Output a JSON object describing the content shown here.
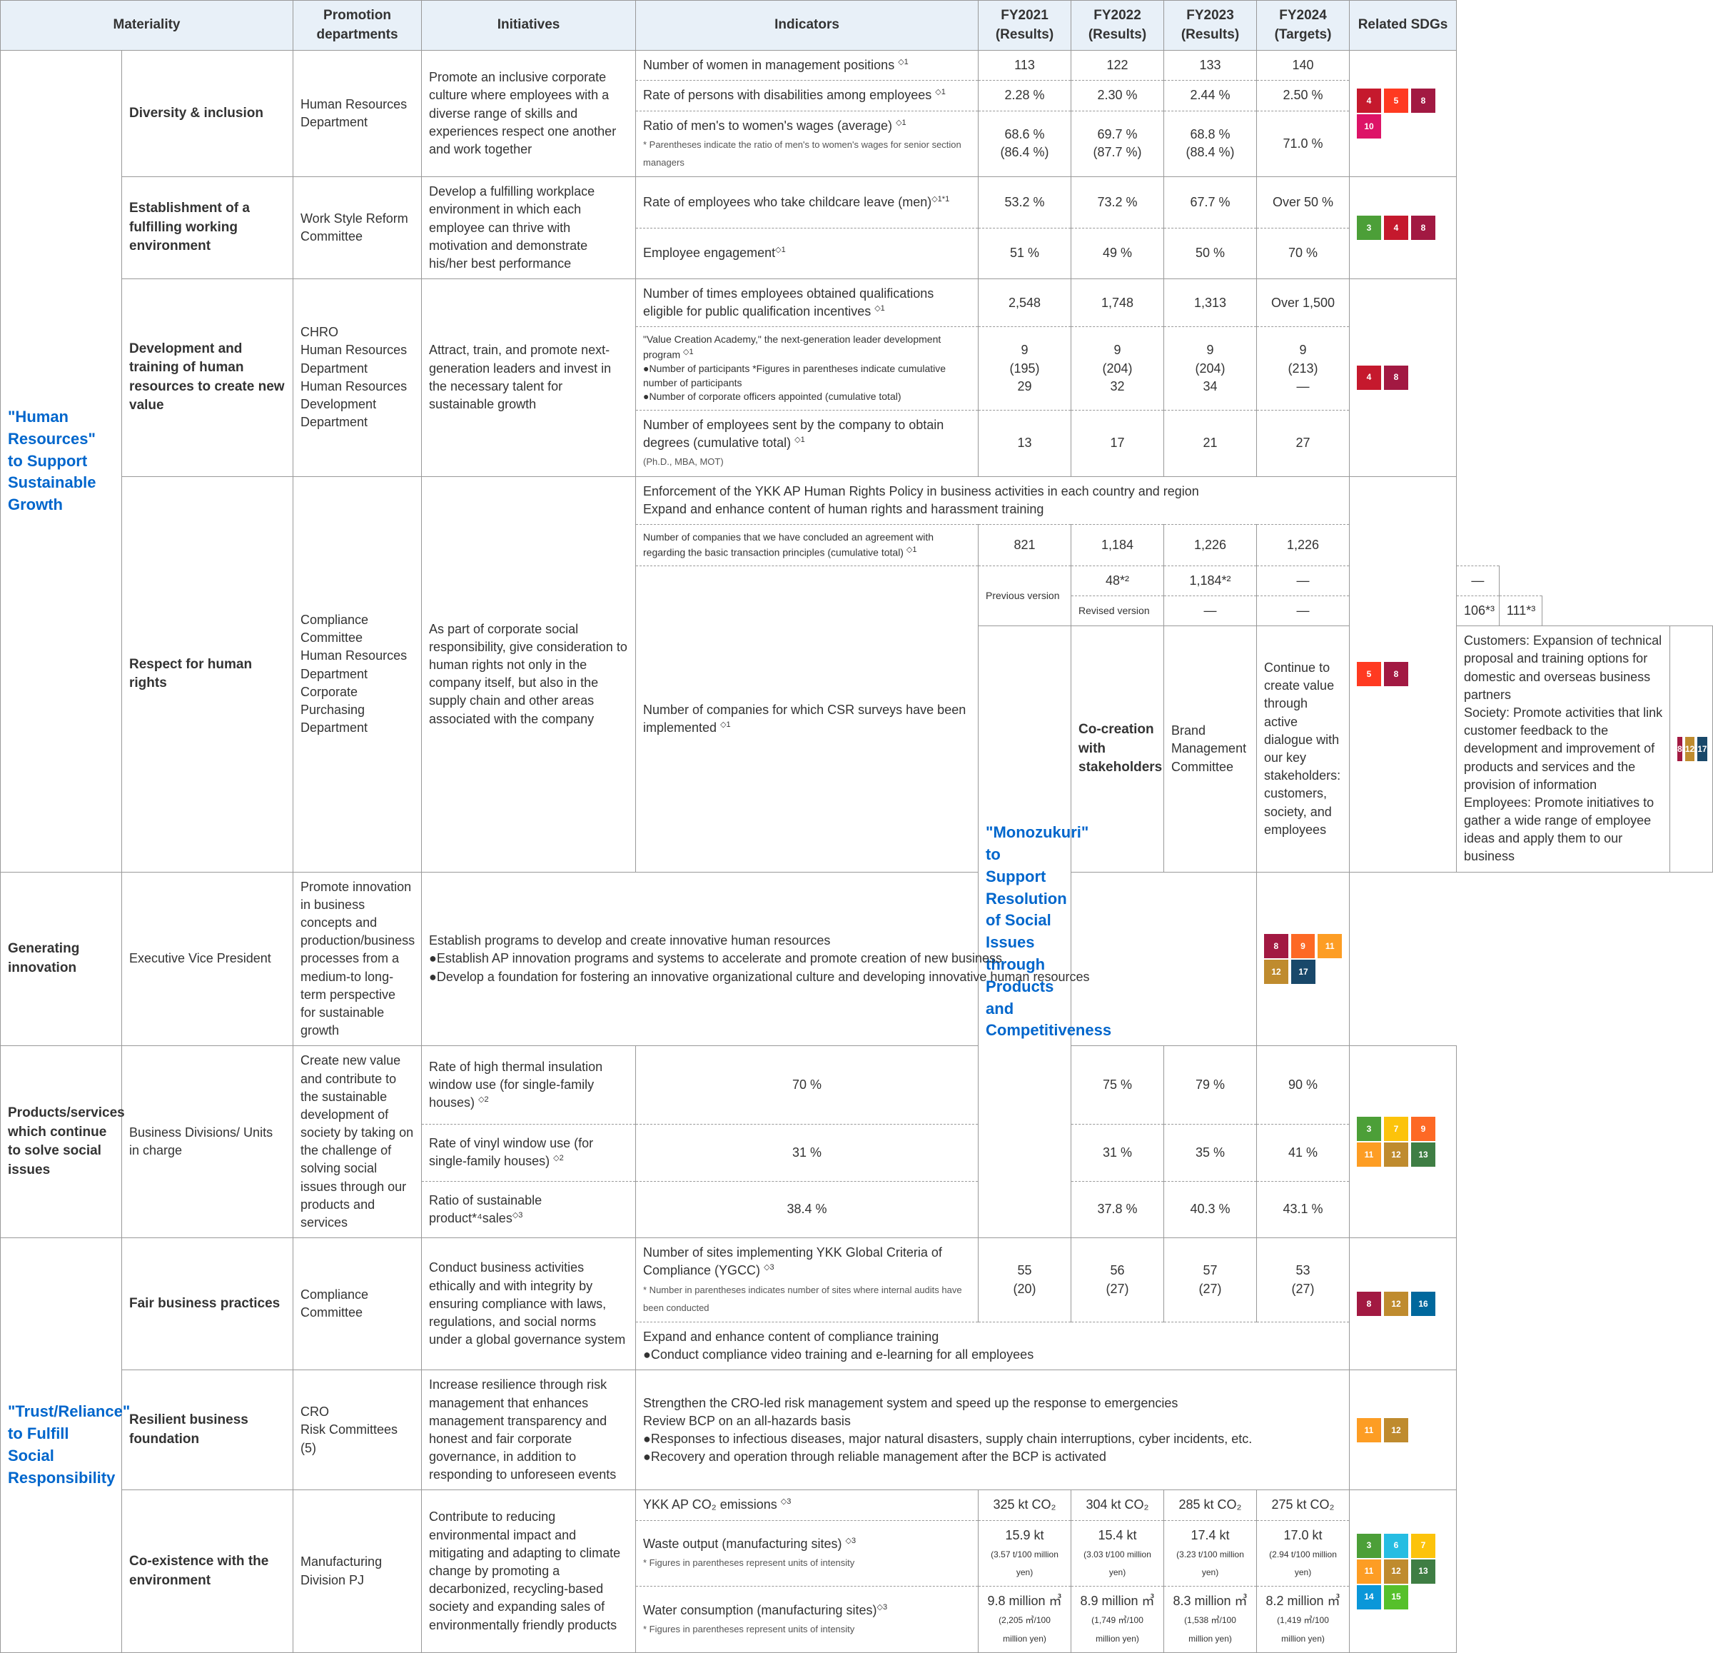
{
  "headers": {
    "materiality": "Materiality",
    "promotion": "Promotion\ndepartments",
    "initiatives": "Initiatives",
    "indicators": "Indicators",
    "fy2021": "FY2021\n(Results)",
    "fy2022": "FY2022\n(Results)",
    "fy2023": "FY2023\n(Results)",
    "fy2024": "FY2024\n(Targets)",
    "related": "Related SDGs"
  },
  "pillars": {
    "p1": "\"Human Resources\" to Support Sustainable Growth",
    "p2": "\"Monozukuri\" to Support Resolution of Social Issues through Products and Competitiveness",
    "p3": "\"Trust/Reliance\" to Fulfill Social Responsibility"
  },
  "mat": {
    "m1": "Diversity & inclusion",
    "m2": "Establishment of a fulfilling working environment",
    "m3": "Development and training of human resources to create new value",
    "m4": "Respect for human rights",
    "m5": "Co-creation with stakeholders",
    "m6": "Generating innovation",
    "m7": "Products/services which continue to solve social issues",
    "m8": "Fair business practices",
    "m9": "Resilient business foundation",
    "m10": "Co-existence with the environment"
  },
  "dept": {
    "d1": "Human Resources Department",
    "d2": "Work Style Reform Committee",
    "d3": "CHRO\nHuman Resources Department\nHuman Resources Development Department",
    "d4": "Compliance Committee\nHuman Resources Department\nCorporate Purchasing Department",
    "d5": "Brand Management Committee",
    "d6": "Executive Vice President",
    "d7": "Business Divisions/ Units in charge",
    "d8": "Compliance Committee",
    "d9": "CRO\nRisk Committees (5)",
    "d10": "Manufacturing Division PJ"
  },
  "init": {
    "i1": "Promote an inclusive corporate culture where employees with a diverse range of skills and experiences respect one another and work together",
    "i2": "Develop a fulfilling workplace environment in which each employee can thrive with motivation and demonstrate his/her best performance",
    "i3": "Attract, train, and promote next-generation leaders and invest in the necessary talent for sustainable growth",
    "i4": "As part of corporate social responsibility, give consideration to human rights not only in the company itself, but also in the supply chain and other areas associated with the company",
    "i5": "Continue to create value through active dialogue with our key stakeholders:\ncustomers, society, and employees",
    "i6": "Promote innovation in business concepts and production/business processes from a medium-to long-term perspective for sustainable growth",
    "i7": "Create new value and contribute to the sustainable development of society by taking on the challenge of solving social issues through our products and services",
    "i8": "Conduct business activities ethically and with integrity by ensuring compliance with laws, regulations, and social norms under a global governance system",
    "i9": "Increase resilience through risk management that enhances management transparency and honest and fair corporate governance, in addition to responding to unforeseen events",
    "i10": "Contribute to reducing environmental impact and mitigating and adapting to climate change by promoting a decarbonized, recycling-based society and expanding sales of environmentally friendly products"
  },
  "ind": {
    "r1": "Number of women in management positions",
    "r2": "Rate of persons with disabilities among employees",
    "r3": "Ratio of men's to women's wages (average)",
    "r3note": "* Parentheses indicate the ratio of men's to women's wages for senior section managers",
    "r4": "Rate of employees who take childcare leave (men)",
    "r5": "Employee engagement",
    "r6": "Number of times employees obtained qualifications eligible for public qualification incentives",
    "r7a": "\"Value Creation Academy,\" the next-generation leader development program",
    "r7b": "●Number of participants *Figures in parentheses indicate cumulative number of participants",
    "r7c": "●Number of corporate officers appointed (cumulative total)",
    "r8": "Number of employees sent by the company to obtain degrees (cumulative total)",
    "r8note": "(Ph.D., MBA, MOT)",
    "r9span": "Enforcement of the YKK AP Human Rights Policy in business activities in each country and region\nExpand and enhance content of human rights and harassment training",
    "r10": "Number of companies that we have concluded an agreement with regarding the basic transaction principles (cumulative total)",
    "r11": "Number of companies for which CSR surveys have been implemented",
    "r11a": "Previous version",
    "r11b": "Revised version",
    "r12span": "Customers: Expansion of technical proposal and training options for domestic and overseas business partners\nSociety: Promote activities that link customer feedback to the development and improvement of products and services and the provision of information\nEmployees: Promote initiatives to gather a wide range of employee ideas and apply them to our business",
    "r13span": "Establish programs to develop and create innovative human resources\n●Establish AP innovation programs and systems to accelerate and promote creation of new business\n●Develop a foundation for fostering an innovative organizational culture and developing innovative human resources",
    "r14": "Rate of high thermal insulation window use (for single-family houses)",
    "r15": "Rate of vinyl window use (for single-family houses)",
    "r16": "Ratio of sustainable product*⁴sales",
    "r17": "Number of sites implementing YKK Global Criteria of Compliance (YGCC)",
    "r17note": "* Number in parentheses indicates number of sites where internal audits have been conducted",
    "r18span": "Expand and enhance content of compliance training\n●Conduct compliance video training and e-learning for all employees",
    "r19span": "Strengthen the CRO-led risk management system and speed up the response to emergencies\nReview BCP on an all-hazards basis\n●Responses to infectious diseases, major natural disasters, supply chain interruptions, cyber incidents, etc.\n●Recovery and operation through reliable management after the BCP is activated",
    "r20": "YKK AP CO₂ emissions",
    "r21": "Waste output (manufacturing sites)",
    "r21note": "* Figures in parentheses represent units of intensity",
    "r22": "Water consumption (manufacturing sites)",
    "r22note": "* Figures in parentheses represent units of intensity"
  },
  "v": {
    "r1": [
      "113",
      "122",
      "133",
      "140"
    ],
    "r2": [
      "2.28 %",
      "2.30 %",
      "2.44 %",
      "2.50 %"
    ],
    "r3": [
      "68.6 %\n(86.4 %)",
      "69.7 %\n(87.7 %)",
      "68.8 %\n(88.4 %)",
      "71.0 %"
    ],
    "r4": [
      "53.2 %",
      "73.2 %",
      "67.7 %",
      "Over 50 %"
    ],
    "r5": [
      "51 %",
      "49 %",
      "50 %",
      "70 %"
    ],
    "r6": [
      "2,548",
      "1,748",
      "1,313",
      "Over 1,500"
    ],
    "r7": [
      "9\n(195)\n29",
      "9\n(204)\n32",
      "9\n(204)\n34",
      "9\n(213)\n—"
    ],
    "r8": [
      "13",
      "17",
      "21",
      "27"
    ],
    "r10": [
      "821",
      "1,184",
      "1,226",
      "1,226"
    ],
    "r11a": [
      "48*²",
      "1,184*²",
      "—",
      "—"
    ],
    "r11b": [
      "—",
      "—",
      "106*³",
      "111*³"
    ],
    "r14": [
      "70 %",
      "75 %",
      "79 %",
      "90 %"
    ],
    "r15": [
      "31 %",
      "31 %",
      "35 %",
      "41 %"
    ],
    "r16": [
      "38.4 %",
      "37.8 %",
      "40.3 %",
      "43.1 %"
    ],
    "r17": [
      "55\n(20)",
      "56\n(27)",
      "57\n(27)",
      "53\n(27)"
    ],
    "r20": [
      "325 kt CO₂",
      "304 kt CO₂",
      "285 kt CO₂",
      "275 kt CO₂"
    ],
    "r21": [
      "15.9 kt",
      "15.4 kt",
      "17.4 kt",
      "17.0 kt"
    ],
    "r21p": [
      "(3.57 t/100 million yen)",
      "(3.03 t/100 million yen)",
      "(3.23 t/100 million yen)",
      "(2.94 t/100 million yen)"
    ],
    "r22": [
      "9.8 million ㎥",
      "8.9 million ㎥",
      "8.3 million ㎥",
      "8.2 million ㎥"
    ],
    "r22p": [
      "(2,205 ㎥/100 million yen)",
      "(1,749 ㎥/100 million yen)",
      "(1,538 ㎥/100 million yen)",
      "(1,419 ㎥/100 million yen)"
    ]
  },
  "sdg_colors": {
    "1": "#e5243b",
    "2": "#dda63a",
    "3": "#4c9f38",
    "4": "#c5192d",
    "5": "#ff3a21",
    "6": "#26bde2",
    "7": "#fcc30b",
    "8": "#a21942",
    "9": "#fd6925",
    "10": "#dd1367",
    "11": "#fd9d24",
    "12": "#bf8b2e",
    "13": "#3f7e44",
    "14": "#0a97d9",
    "15": "#56c02b",
    "16": "#00689d",
    "17": "#19486a"
  },
  "sdgs": {
    "s1": [
      [
        "4",
        "5",
        "8"
      ],
      [
        "10"
      ]
    ],
    "s2": [
      [
        "3",
        "4",
        "8"
      ]
    ],
    "s3": [
      [
        "4",
        "8"
      ]
    ],
    "s4": [
      [
        "5",
        "8"
      ]
    ],
    "s5": [
      [
        "8",
        "12",
        "17"
      ]
    ],
    "s6": [
      [
        "8",
        "9",
        "11"
      ],
      [
        "12",
        "17"
      ]
    ],
    "s7": [
      [
        "3",
        "7",
        "9"
      ],
      [
        "11",
        "12",
        "13"
      ]
    ],
    "s8": [
      [
        "8",
        "12",
        "16"
      ]
    ],
    "s9": [
      [
        "11",
        "12"
      ]
    ],
    "s10": [
      [
        "3",
        "6",
        "7"
      ],
      [
        "11",
        "12",
        "13"
      ],
      [
        "14",
        "15"
      ]
    ]
  }
}
